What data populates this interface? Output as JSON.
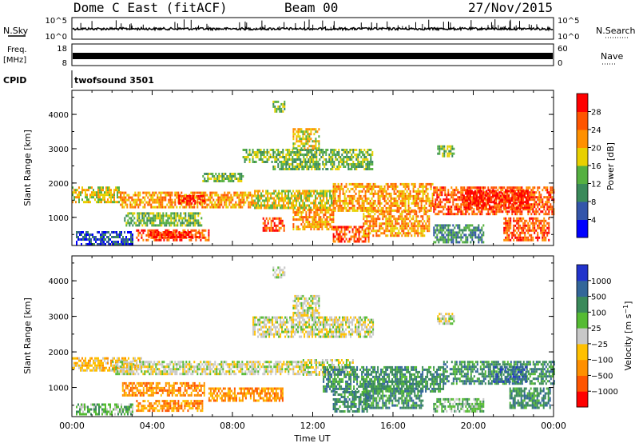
{
  "header": {
    "station": "Dome C East (fitACF)",
    "beam": "Beam 00",
    "date": "27/Nov/2015"
  },
  "top_panels": {
    "nsky_label": "N.Sky",
    "nsky_ticks": [
      "10^5",
      "10^0"
    ],
    "nsearch_label": "N.Search",
    "nsearch_ticks": [
      "10^5",
      "10^0"
    ],
    "freq_label_1": "Freq.",
    "freq_label_2": "[MHz]",
    "freq_ticks": [
      "18",
      "8"
    ],
    "nave_label": "Nave",
    "nave_ticks": [
      "60",
      "0"
    ],
    "cpid_label": "CPID",
    "cpid_value": "twofsound 3501"
  },
  "colors": {
    "power": [
      "#0000ff",
      "#3355aa",
      "#3a8a5a",
      "#55b040",
      "#e8d000",
      "#ff9000",
      "#ff5500",
      "#ff0000"
    ],
    "velocity": [
      "#ff0000",
      "#ff5500",
      "#ff9000",
      "#ffc000",
      "#c8c8c8",
      "#55bb33",
      "#3a8a5a",
      "#336699",
      "#2233cc"
    ]
  },
  "chart_data": [
    {
      "type": "heatmap",
      "panel": "power",
      "ylabel": "Slant Range [km]",
      "xlabel": "",
      "x_ticks": [
        "00:00",
        "04:00",
        "08:00",
        "12:00",
        "16:00",
        "20:00",
        "00:00"
      ],
      "x_range_hours": [
        0,
        24
      ],
      "y_ticks": [
        "1000",
        "2000",
        "3000",
        "4000"
      ],
      "y_range_km": [
        180,
        4700
      ],
      "colorbar_label": "Power [dB]",
      "colorbar_ticks": [
        "28",
        "24",
        "20",
        "16",
        "12",
        "8",
        "4"
      ],
      "colorbar_range": [
        0,
        32
      ],
      "regions": [
        {
          "t0": 0.0,
          "t1": 2.4,
          "r0": 1450,
          "r1": 1900,
          "level": 4
        },
        {
          "t0": 2.4,
          "t1": 9.0,
          "r0": 1300,
          "r1": 1750,
          "level": 5
        },
        {
          "t0": 5.3,
          "t1": 6.6,
          "r0": 1400,
          "r1": 1650,
          "level": 7
        },
        {
          "t0": 9.0,
          "t1": 13.0,
          "r0": 1300,
          "r1": 1800,
          "level": 4
        },
        {
          "t0": 13.0,
          "t1": 18.0,
          "r0": 1200,
          "r1": 2000,
          "level": 5
        },
        {
          "t0": 18.0,
          "t1": 24.0,
          "r0": 1100,
          "r1": 1900,
          "level": 6
        },
        {
          "t0": 19.5,
          "t1": 22.8,
          "r0": 1300,
          "r1": 1800,
          "level": 7
        },
        {
          "t0": 3.2,
          "t1": 6.8,
          "r0": 350,
          "r1": 650,
          "level": 6
        },
        {
          "t0": 3.8,
          "t1": 6.4,
          "r0": 400,
          "r1": 600,
          "level": 7
        },
        {
          "t0": 0.2,
          "t1": 3.0,
          "r0": 250,
          "r1": 600,
          "level": 1
        },
        {
          "t0": 2.6,
          "t1": 6.5,
          "r0": 800,
          "r1": 1150,
          "level": 3
        },
        {
          "t0": 9.5,
          "t1": 10.6,
          "r0": 600,
          "r1": 1000,
          "level": 6
        },
        {
          "t0": 11.0,
          "t1": 13.0,
          "r0": 650,
          "r1": 1250,
          "level": 5
        },
        {
          "t0": 13.0,
          "t1": 14.8,
          "r0": 300,
          "r1": 750,
          "level": 6
        },
        {
          "t0": 14.5,
          "t1": 17.8,
          "r0": 500,
          "r1": 1200,
          "level": 5
        },
        {
          "t0": 18.0,
          "t1": 20.5,
          "r0": 250,
          "r1": 800,
          "level": 2
        },
        {
          "t0": 21.5,
          "t1": 23.8,
          "r0": 350,
          "r1": 1000,
          "level": 6
        },
        {
          "t0": 10.0,
          "t1": 15.0,
          "r0": 2400,
          "r1": 3000,
          "level": 3
        },
        {
          "t0": 11.0,
          "t1": 12.3,
          "r0": 3000,
          "r1": 3600,
          "level": 4
        },
        {
          "t0": 8.5,
          "t1": 10.0,
          "r0": 2600,
          "r1": 3000,
          "level": 3
        },
        {
          "t0": 18.2,
          "t1": 19.0,
          "r0": 2800,
          "r1": 3100,
          "level": 3
        },
        {
          "t0": 10.0,
          "t1": 10.6,
          "r0": 4100,
          "r1": 4400,
          "level": 3
        },
        {
          "t0": 6.5,
          "t1": 8.5,
          "r0": 2050,
          "r1": 2300,
          "level": 3
        }
      ]
    },
    {
      "type": "heatmap",
      "panel": "velocity",
      "ylabel": "Slant Range [km]",
      "xlabel": "Time UT",
      "x_ticks": [
        "00:00",
        "04:00",
        "08:00",
        "12:00",
        "16:00",
        "20:00",
        "00:00"
      ],
      "x_range_hours": [
        0,
        24
      ],
      "y_ticks": [
        "1000",
        "2000",
        "3000",
        "4000"
      ],
      "y_range_km": [
        180,
        4700
      ],
      "colorbar_label": "Velocity [m s^-1]",
      "colorbar_ticks": [
        "1000",
        "500",
        "100",
        "25",
        "−25",
        "−100",
        "−500",
        "−1000"
      ],
      "colorbar_range": [
        -1200,
        1200
      ],
      "regions": [
        {
          "t0": 0.0,
          "t1": 3.5,
          "r0": 1450,
          "r1": 1850,
          "level": 3
        },
        {
          "t0": 2.0,
          "t1": 11.5,
          "r0": 1400,
          "r1": 1750,
          "level": 4
        },
        {
          "t0": 11.5,
          "t1": 14.0,
          "r0": 1350,
          "r1": 1800,
          "level": 4
        },
        {
          "t0": 12.5,
          "t1": 18.5,
          "r0": 900,
          "r1": 1600,
          "level": 6
        },
        {
          "t0": 13.0,
          "t1": 14.8,
          "r0": 300,
          "r1": 900,
          "level": 6
        },
        {
          "t0": 14.5,
          "t1": 17.5,
          "r0": 450,
          "r1": 1200,
          "level": 6
        },
        {
          "t0": 18.5,
          "t1": 24.0,
          "r0": 1100,
          "r1": 1750,
          "level": 6
        },
        {
          "t0": 21.0,
          "t1": 22.6,
          "r0": 1150,
          "r1": 1600,
          "level": 7
        },
        {
          "t0": 21.8,
          "t1": 23.8,
          "r0": 400,
          "r1": 1000,
          "level": 6
        },
        {
          "t0": 18.0,
          "t1": 20.5,
          "r0": 300,
          "r1": 700,
          "level": 5
        },
        {
          "t0": 2.5,
          "t1": 6.6,
          "r0": 750,
          "r1": 1150,
          "level": 2
        },
        {
          "t0": 3.2,
          "t1": 6.5,
          "r0": 350,
          "r1": 650,
          "level": 2
        },
        {
          "t0": 6.8,
          "t1": 10.5,
          "r0": 650,
          "r1": 1000,
          "level": 2
        },
        {
          "t0": 0.2,
          "t1": 3.0,
          "r0": 250,
          "r1": 550,
          "level": 5
        },
        {
          "t0": 9.0,
          "t1": 15.0,
          "r0": 2400,
          "r1": 3000,
          "level": 4
        },
        {
          "t0": 11.0,
          "t1": 12.3,
          "r0": 3000,
          "r1": 3600,
          "level": 4
        },
        {
          "t0": 10.0,
          "t1": 10.6,
          "r0": 4100,
          "r1": 4400,
          "level": 4
        },
        {
          "t0": 18.2,
          "t1": 19.0,
          "r0": 2800,
          "r1": 3100,
          "level": 4
        }
      ]
    }
  ]
}
